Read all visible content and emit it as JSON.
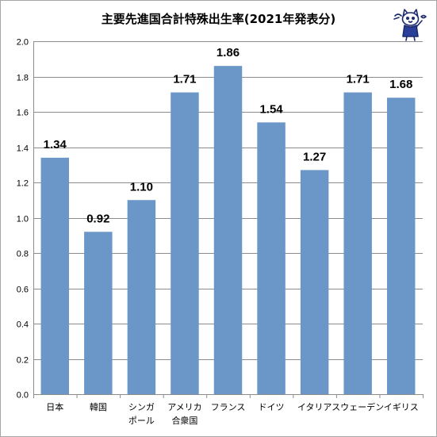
{
  "chart_data": {
    "type": "bar",
    "title": "主要先進国合計特殊出生率(2021年発表分)",
    "categories": [
      [
        "日本"
      ],
      [
        "韓国"
      ],
      [
        "シンガ",
        "ポール"
      ],
      [
        "アメリカ",
        "合衆国"
      ],
      [
        "フランス"
      ],
      [
        "ドイツ"
      ],
      [
        "イタリア"
      ],
      [
        "スウェーデン"
      ],
      [
        "イギリス"
      ]
    ],
    "values": [
      1.34,
      0.92,
      1.1,
      1.71,
      1.86,
      1.54,
      1.27,
      1.71,
      1.68
    ],
    "data_labels": [
      "1.34",
      "0.92",
      "1.10",
      "1.71",
      "1.86",
      "1.54",
      "1.27",
      "1.71",
      "1.68"
    ],
    "y_ticks": [
      "0.0",
      "0.2",
      "0.4",
      "0.6",
      "0.8",
      "1.0",
      "1.2",
      "1.4",
      "1.6",
      "1.8",
      "2.0"
    ],
    "ylim": [
      0,
      2.0
    ],
    "grid": true,
    "bar_color": "#6a96c8",
    "grid_color": "#8c8c8c"
  },
  "mascot": {
    "icon": "cat-mascot-icon"
  }
}
